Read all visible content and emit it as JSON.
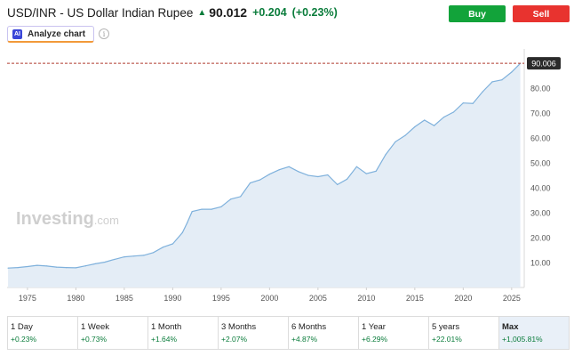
{
  "header": {
    "title": "USD/INR - US Dollar Indian Rupee",
    "price": "90.012",
    "change": "+0.204",
    "change_pct": "(+0.23%)"
  },
  "actions": {
    "buy_label": "Buy",
    "sell_label": "Sell"
  },
  "analyze": {
    "badge": "AI",
    "label": "Analyze chart"
  },
  "colors": {
    "up": "#0a7c3b",
    "buy": "#12a33a",
    "sell": "#e8332f",
    "line": "#7fb1dc",
    "area": "#e4edf6"
  },
  "chart_data": {
    "type": "area",
    "x_tick_labels": [
      "1975",
      "1980",
      "1985",
      "1990",
      "1995",
      "2000",
      "2005",
      "2010",
      "2015",
      "2020",
      "2025"
    ],
    "y_tick_labels": [
      "10.00",
      "20.00",
      "30.00",
      "40.00",
      "50.00",
      "60.00",
      "70.00",
      "80.00"
    ],
    "xlim": [
      1972.9,
      2026.3
    ],
    "ylim": [
      0,
      94
    ],
    "current_value": 90.006,
    "current_label": "90.006",
    "watermark": "Investing.com",
    "points": [
      [
        1973.0,
        7.8
      ],
      [
        1974.0,
        8.0
      ],
      [
        1975.0,
        8.4
      ],
      [
        1976.0,
        8.9
      ],
      [
        1977.0,
        8.6
      ],
      [
        1978.0,
        8.2
      ],
      [
        1979.0,
        8.0
      ],
      [
        1980.0,
        7.9
      ],
      [
        1981.0,
        8.7
      ],
      [
        1982.0,
        9.5
      ],
      [
        1983.0,
        10.2
      ],
      [
        1984.0,
        11.3
      ],
      [
        1985.0,
        12.3
      ],
      [
        1986.0,
        12.6
      ],
      [
        1987.0,
        12.9
      ],
      [
        1988.0,
        14.0
      ],
      [
        1989.0,
        16.2
      ],
      [
        1990.0,
        17.5
      ],
      [
        1991.0,
        22.0
      ],
      [
        1991.5,
        26.0
      ],
      [
        1992.0,
        30.5
      ],
      [
        1993.0,
        31.4
      ],
      [
        1994.0,
        31.4
      ],
      [
        1995.0,
        32.4
      ],
      [
        1996.0,
        35.5
      ],
      [
        1997.0,
        36.5
      ],
      [
        1998.0,
        42.0
      ],
      [
        1999.0,
        43.2
      ],
      [
        2000.0,
        45.5
      ],
      [
        2001.0,
        47.3
      ],
      [
        2002.0,
        48.5
      ],
      [
        2003.0,
        46.5
      ],
      [
        2004.0,
        45.0
      ],
      [
        2005.0,
        44.5
      ],
      [
        2006.0,
        45.2
      ],
      [
        2007.0,
        41.3
      ],
      [
        2008.0,
        43.5
      ],
      [
        2009.0,
        48.5
      ],
      [
        2010.0,
        45.7
      ],
      [
        2011.0,
        46.7
      ],
      [
        2012.0,
        53.4
      ],
      [
        2013.0,
        58.5
      ],
      [
        2014.0,
        61.0
      ],
      [
        2015.0,
        64.5
      ],
      [
        2016.0,
        67.2
      ],
      [
        2017.0,
        65.0
      ],
      [
        2018.0,
        68.4
      ],
      [
        2019.0,
        70.4
      ],
      [
        2020.0,
        74.1
      ],
      [
        2021.0,
        73.9
      ],
      [
        2022.0,
        78.6
      ],
      [
        2023.0,
        82.6
      ],
      [
        2024.0,
        83.4
      ],
      [
        2025.0,
        86.5
      ],
      [
        2025.9,
        90.0
      ]
    ]
  },
  "periods": [
    {
      "label": "1 Day",
      "value": "+0.23%"
    },
    {
      "label": "1 Week",
      "value": "+0.73%"
    },
    {
      "label": "1 Month",
      "value": "+1.64%"
    },
    {
      "label": "3 Months",
      "value": "+2.07%"
    },
    {
      "label": "6 Months",
      "value": "+4.87%"
    },
    {
      "label": "1 Year",
      "value": "+6.29%"
    },
    {
      "label": "5 years",
      "value": "+22.01%"
    },
    {
      "label": "Max",
      "value": "+1,005.81%"
    }
  ]
}
